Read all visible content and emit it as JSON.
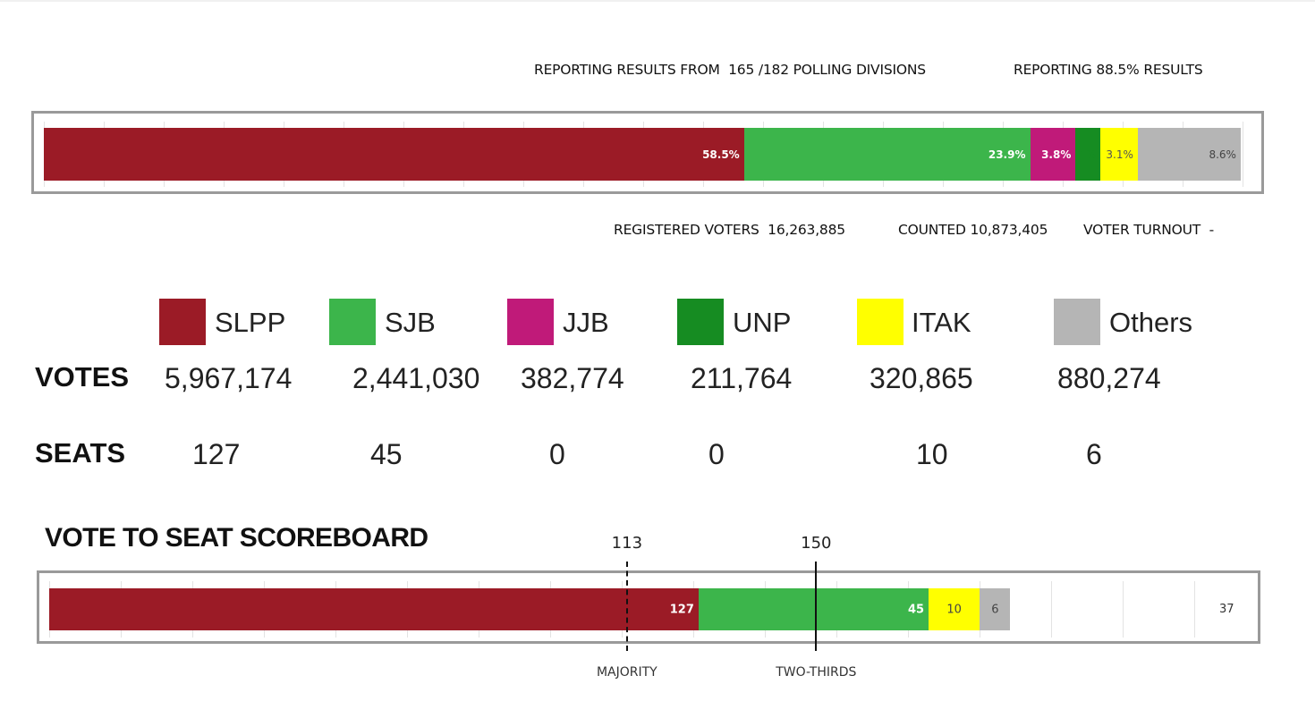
{
  "header": {
    "reporting_prefix": "REPORTING RESULTS FROM",
    "reported_divisions": "165",
    "total_divisions": "/182",
    "divisions_suffix": "POLLING DIVISIONS",
    "reporting_pct_prefix": "REPORTING",
    "reporting_pct": "88.5%",
    "reporting_pct_suffix": "RESULTS"
  },
  "vote_bar": [
    {
      "party": "SLPP",
      "share": 58.5,
      "label": "58.5%",
      "color": "#9b1b26",
      "text_color": "#ffffff"
    },
    {
      "party": "SJB",
      "share": 23.9,
      "label": "23.9%",
      "color": "#3cb54b",
      "text_color": "#ffffff"
    },
    {
      "party": "JJB",
      "share": 3.8,
      "label": "3.8%",
      "color": "#c01a79",
      "text_color": "#ffffff"
    },
    {
      "party": "UNP",
      "share": 2.1,
      "label": "2.1%",
      "color": "#168c22",
      "text_color": "#168c22"
    },
    {
      "party": "ITAK",
      "share": 3.1,
      "label": "3.1%",
      "color": "#ffff00",
      "text_color": "#555555"
    },
    {
      "party": "Others",
      "share": 8.6,
      "label": "8.6%",
      "color": "#b5b5b5",
      "text_color": "#444444"
    }
  ],
  "stats": {
    "registered_label": "REGISTERED VOTERS",
    "registered_value": "16,263,885",
    "counted_label": "COUNTED",
    "counted_value": "10,873,405",
    "turnout_label": "VOTER TURNOUT",
    "turnout_value": "-"
  },
  "table": {
    "votes_label": "VOTES",
    "seats_label": "SEATS",
    "parties": [
      {
        "name": "SLPP",
        "color": "#9b1b26",
        "votes": "5,967,174",
        "seats": "127"
      },
      {
        "name": "SJB",
        "color": "#3cb54b",
        "votes": "2,441,030",
        "seats": "45"
      },
      {
        "name": "JJB",
        "color": "#c01a79",
        "votes": "382,774",
        "seats": "0"
      },
      {
        "name": "UNP",
        "color": "#168c22",
        "votes": "211,764",
        "seats": "0"
      },
      {
        "name": "ITAK",
        "color": "#ffff00",
        "votes": "320,865",
        "seats": "10"
      },
      {
        "name": "Others",
        "color": "#b5b5b5",
        "votes": "880,274",
        "seats": "6"
      }
    ]
  },
  "scoreboard": {
    "title": "VOTE TO SEAT SCOREBOARD",
    "total_seats": 225,
    "segments": [
      {
        "party": "SLPP",
        "seats": 127,
        "label": "127",
        "color": "#9b1b26",
        "text_color": "#ffffff"
      },
      {
        "party": "SJB",
        "seats": 45,
        "label": "45",
        "color": "#3cb54b",
        "text_color": "#ffffff"
      },
      {
        "party": "ITAK",
        "seats": 10,
        "label": "10",
        "color": "#ffff00",
        "text_color": "#444444"
      },
      {
        "party": "Others",
        "seats": 6,
        "label": "6",
        "color": "#b5b5b5",
        "text_color": "#444444"
      }
    ],
    "remaining": "37",
    "majority_value": "113",
    "majority_seats": 113,
    "majority_caption": "MAJORITY",
    "two_thirds_value": "150",
    "two_thirds_seats": 150,
    "two_thirds_caption": "TWO-THIRDS"
  }
}
